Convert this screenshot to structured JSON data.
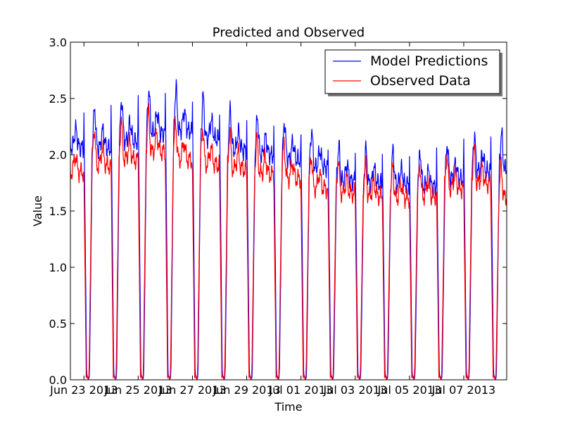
{
  "chart_data": {
    "type": "line",
    "title": "Predicted and Observed",
    "xlabel": "Time",
    "ylabel": "Value",
    "ylim": [
      0,
      3.0
    ],
    "xlim": [
      "2013-06-22T12:00",
      "2013-07-08T14:00"
    ],
    "yticks": [
      0.0,
      0.5,
      1.0,
      1.5,
      2.0,
      2.5,
      3.0
    ],
    "ytick_labels": [
      "0.0",
      "0.5",
      "1.0",
      "1.5",
      "2.0",
      "2.5",
      "3.0"
    ],
    "xticks": [
      "2013-06-23",
      "2013-06-25",
      "2013-06-27",
      "2013-06-29",
      "2013-07-01",
      "2013-07-03",
      "2013-07-05",
      "2013-07-07"
    ],
    "xtick_labels": [
      "Jun 23 2013",
      "Jun 25 2013",
      "Jun 27 2013",
      "Jun 29 2013",
      "Jul 01 2013",
      "Jul 03 2013",
      "Jul 05 2013",
      "Jul 07 2013"
    ],
    "grid": false,
    "legend_position": "top-right",
    "series": [
      {
        "name": "Model Predictions",
        "color": "#0000ff",
        "daily_peaks": [
          [
            "2013-06-22",
            2.43
          ],
          [
            "2013-06-23",
            2.42
          ],
          [
            "2013-06-24",
            2.49
          ],
          [
            "2013-06-25",
            2.58
          ],
          [
            "2013-06-26",
            2.6
          ],
          [
            "2013-06-27",
            2.52
          ],
          [
            "2013-06-28",
            2.4
          ],
          [
            "2013-06-29",
            2.35
          ],
          [
            "2013-06-30",
            2.3
          ],
          [
            "2013-07-01",
            2.22
          ],
          [
            "2013-07-02",
            2.08
          ],
          [
            "2013-07-03",
            2.05
          ],
          [
            "2013-07-04",
            2.04
          ],
          [
            "2013-07-05",
            2.02
          ],
          [
            "2013-07-06",
            2.1
          ],
          [
            "2013-07-07",
            2.18
          ],
          [
            "2013-07-08",
            2.2
          ]
        ]
      },
      {
        "name": "Observed Data",
        "color": "#ff0000",
        "daily_peaks": [
          [
            "2013-06-22",
            2.17
          ],
          [
            "2013-06-23",
            2.24
          ],
          [
            "2013-06-24",
            2.3
          ],
          [
            "2013-06-25",
            2.38
          ],
          [
            "2013-06-26",
            2.3
          ],
          [
            "2013-06-27",
            2.25
          ],
          [
            "2013-06-28",
            2.2
          ],
          [
            "2013-06-29",
            2.15
          ],
          [
            "2013-06-30",
            2.1
          ],
          [
            "2013-07-01",
            2.0
          ],
          [
            "2013-07-02",
            1.95
          ],
          [
            "2013-07-03",
            1.92
          ],
          [
            "2013-07-04",
            1.9
          ],
          [
            "2013-07-05",
            1.92
          ],
          [
            "2013-07-06",
            2.0
          ],
          [
            "2013-07-07",
            2.05
          ],
          [
            "2013-07-08",
            1.9
          ]
        ]
      }
    ]
  }
}
